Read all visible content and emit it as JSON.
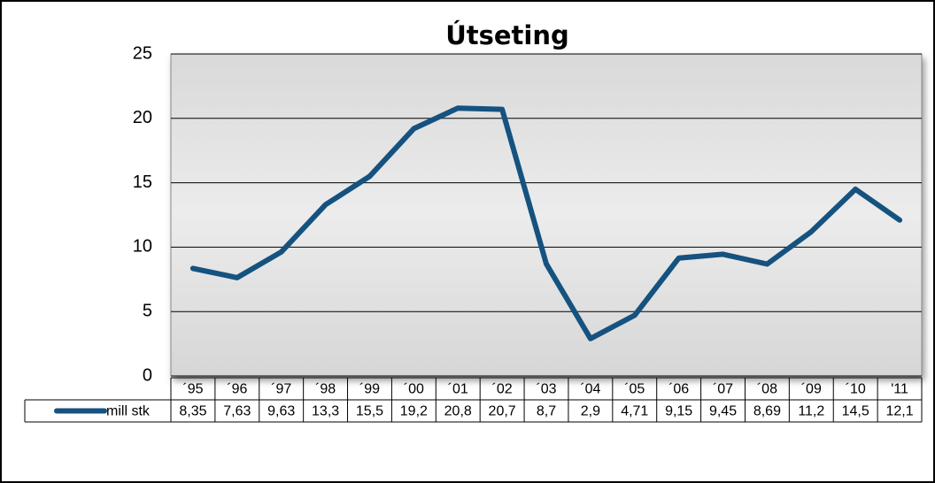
{
  "chart_data": {
    "type": "line",
    "title": "Útseting",
    "categories": [
      "´95",
      "´96",
      "´97",
      "´98",
      "´99",
      "´00",
      "´01",
      "´02",
      "´03",
      "´04",
      "´05",
      "´06",
      "´07",
      "´08",
      "´09",
      "´10",
      "'11"
    ],
    "series": [
      {
        "name": "mill stk",
        "color": "#15527f",
        "values": [
          8.35,
          7.63,
          9.63,
          13.3,
          15.5,
          19.2,
          20.8,
          20.7,
          8.7,
          2.9,
          4.71,
          9.15,
          9.45,
          8.69,
          11.2,
          14.5,
          12.1
        ],
        "value_labels": [
          "8,35",
          "7,63",
          "9,63",
          "13,3",
          "15,5",
          "19,2",
          "20,8",
          "20,7",
          "8,7",
          "2,9",
          "4,71",
          "9,15",
          "9,45",
          "8,69",
          "11,2",
          "14,5",
          "12,1"
        ]
      }
    ],
    "ylim": [
      0,
      25
    ],
    "yticks": [
      0,
      5,
      10,
      15,
      20,
      25
    ],
    "grid": true
  }
}
